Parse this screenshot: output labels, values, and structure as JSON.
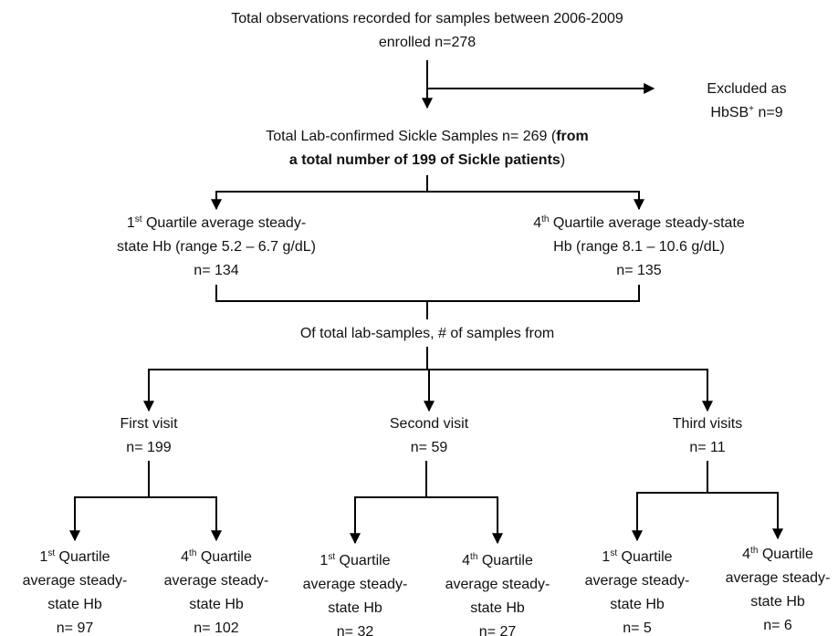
{
  "nodes": [
    {
      "lines": [
        [
          {
            "text": "Total observations recorded for samples between 2006-2009"
          }
        ],
        [
          {
            "text": "enrolled n=278"
          }
        ]
      ]
    },
    {
      "lines": [
        [
          {
            "text": "Excluded as"
          }
        ],
        [
          {
            "text": "HbSB"
          },
          {
            "text": "+",
            "format": "sup"
          },
          {
            "text": " n=9"
          }
        ]
      ]
    },
    {
      "lines": [
        [
          {
            "text": "Total Lab-confirmed Sickle Samples n= 269 ("
          },
          {
            "text": "from",
            "format": "bold"
          }
        ],
        [
          {
            "text": "a total number of 199 of Sickle patients",
            "format": "bold"
          },
          {
            "text": ")"
          }
        ]
      ]
    },
    {
      "lines": [
        [
          {
            "text": "1"
          },
          {
            "text": "st",
            "format": "sup"
          },
          {
            "text": " Quartile average steady-"
          }
        ],
        [
          {
            "text": "state Hb (range 5.2 – 6.7 g/dL)"
          }
        ],
        [
          {
            "text": "n= 134"
          }
        ]
      ]
    },
    {
      "lines": [
        [
          {
            "text": "4"
          },
          {
            "text": "th",
            "format": "sup"
          },
          {
            "text": " Quartile average steady-state"
          }
        ],
        [
          {
            "text": "Hb (range 8.1 – 10.6 g/dL)"
          }
        ],
        [
          {
            "text": "n= 135"
          }
        ]
      ]
    },
    {
      "lines": [
        [
          {
            "text": "Of total lab-samples, # of samples from"
          }
        ]
      ]
    },
    {
      "lines": [
        [
          {
            "text": "First visit"
          }
        ],
        [
          {
            "text": "n= 199"
          }
        ]
      ]
    },
    {
      "lines": [
        [
          {
            "text": "Second  visit"
          }
        ],
        [
          {
            "text": "n= 59"
          }
        ]
      ]
    },
    {
      "lines": [
        [
          {
            "text": "Third visits"
          }
        ],
        [
          {
            "text": "n= 11"
          }
        ]
      ]
    },
    {
      "lines": [
        [
          {
            "text": "1"
          },
          {
            "text": "st",
            "format": "sup"
          },
          {
            "text": " Quartile"
          }
        ],
        [
          {
            "text": "average steady-"
          }
        ],
        [
          {
            "text": "state Hb"
          }
        ],
        [
          {
            "text": "n= 97"
          }
        ]
      ]
    },
    {
      "lines": [
        [
          {
            "text": "4"
          },
          {
            "text": "th",
            "format": "sup"
          },
          {
            "text": " Quartile"
          }
        ],
        [
          {
            "text": "average steady-"
          }
        ],
        [
          {
            "text": "state Hb"
          }
        ],
        [
          {
            "text": "n= 102"
          }
        ]
      ]
    },
    {
      "lines": [
        [
          {
            "text": "1"
          },
          {
            "text": "st",
            "format": "sup"
          },
          {
            "text": " Quartile"
          }
        ],
        [
          {
            "text": "average steady-"
          }
        ],
        [
          {
            "text": "state Hb"
          }
        ],
        [
          {
            "text": "n= 32"
          }
        ]
      ]
    },
    {
      "lines": [
        [
          {
            "text": "4"
          },
          {
            "text": "th",
            "format": "sup"
          },
          {
            "text": " Quartile"
          }
        ],
        [
          {
            "text": "average steady-"
          }
        ],
        [
          {
            "text": "state Hb"
          }
        ],
        [
          {
            "text": "n= 27"
          }
        ]
      ]
    },
    {
      "lines": [
        [
          {
            "text": "1"
          },
          {
            "text": "st",
            "format": "sup"
          },
          {
            "text": " Quartile"
          }
        ],
        [
          {
            "text": "average steady-"
          }
        ],
        [
          {
            "text": "state Hb"
          }
        ],
        [
          {
            "text": "n= 5"
          }
        ]
      ]
    },
    {
      "lines": [
        [
          {
            "text": "4"
          },
          {
            "text": "th",
            "format": "sup"
          },
          {
            "text": " Quartile"
          }
        ],
        [
          {
            "text": "average steady-"
          }
        ],
        [
          {
            "text": "state Hb"
          }
        ],
        [
          {
            "text": "n= 6"
          }
        ]
      ]
    }
  ]
}
